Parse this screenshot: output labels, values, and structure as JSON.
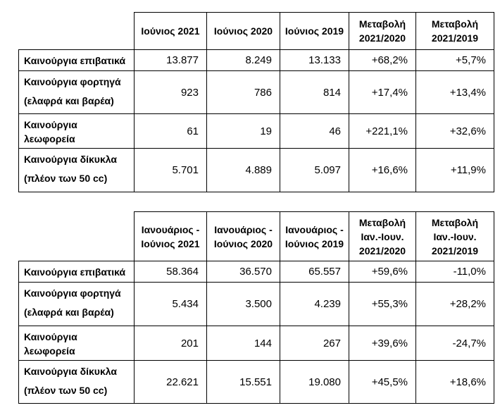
{
  "document": {
    "background": "#ffffff",
    "border_color": "#000000",
    "text_color": "#000000"
  },
  "tables": [
    {
      "id": "monthly",
      "corner_label": "",
      "headers": [
        {
          "lines": [
            "Ιούνιος 2021"
          ]
        },
        {
          "lines": [
            "Ιούνιος 2020"
          ]
        },
        {
          "lines": [
            "Ιούνιος 2019"
          ]
        },
        {
          "lines": [
            "Μεταβολή",
            "2021/2020"
          ]
        },
        {
          "lines": [
            "Μεταβολή",
            "2021/2019"
          ]
        }
      ],
      "rows": [
        {
          "label_lines": [
            "Καινούργια επιβατικά"
          ],
          "label_spaced": false,
          "values": [
            "13.877",
            "8.249",
            "13.133",
            "+68,2%",
            "+5,7%"
          ]
        },
        {
          "label_lines": [
            "Καινούργια φορτηγά",
            "(ελαφρά και βαρέα)"
          ],
          "label_spaced": true,
          "values": [
            "923",
            "786",
            "814",
            "+17,4%",
            "+13,4%"
          ]
        },
        {
          "label_lines": [
            "Καινούργια",
            "λεωφορεία"
          ],
          "label_spaced": false,
          "values": [
            "61",
            "19",
            "46",
            "+221,1%",
            "+32,6%"
          ]
        },
        {
          "label_lines": [
            "Καινούργια δίκυκλα",
            "(πλέον των 50 cc)"
          ],
          "label_spaced": true,
          "values": [
            "5.701",
            "4.889",
            "5.097",
            "+16,6%",
            "+11,9%"
          ]
        }
      ]
    },
    {
      "id": "ytd",
      "corner_label": "",
      "headers": [
        {
          "lines": [
            "Ιανουάριος -",
            "Ιούνιος 2021"
          ]
        },
        {
          "lines": [
            "Ιανουάριος -",
            "Ιούνιος 2020"
          ]
        },
        {
          "lines": [
            "Ιανουάριος -",
            "Ιούνιος 2019"
          ]
        },
        {
          "lines": [
            "Μεταβολή",
            "Ιαν.-Ιουν.",
            "2021/2020"
          ]
        },
        {
          "lines": [
            "Μεταβολή",
            "Ιαν.-Ιουν.",
            "2021/2019"
          ]
        }
      ],
      "rows": [
        {
          "label_lines": [
            "Καινούργια επιβατικά"
          ],
          "label_spaced": false,
          "values": [
            "58.364",
            "36.570",
            "65.557",
            "+59,6%",
            "-11,0%"
          ]
        },
        {
          "label_lines": [
            "Καινούργια φορτηγά",
            "(ελαφρά και βαρέα)"
          ],
          "label_spaced": true,
          "values": [
            "5.434",
            "3.500",
            "4.239",
            "+55,3%",
            "+28,2%"
          ]
        },
        {
          "label_lines": [
            "Καινούργια",
            "λεωφορεία"
          ],
          "label_spaced": false,
          "values": [
            "201",
            "144",
            "267",
            "+39,6%",
            "-24,7%"
          ]
        },
        {
          "label_lines": [
            "Καινούργια δίκυκλα",
            "(πλέον των 50 cc)"
          ],
          "label_spaced": true,
          "values": [
            "22.621",
            "15.551",
            "19.080",
            "+45,5%",
            "+18,6%"
          ]
        }
      ]
    }
  ]
}
